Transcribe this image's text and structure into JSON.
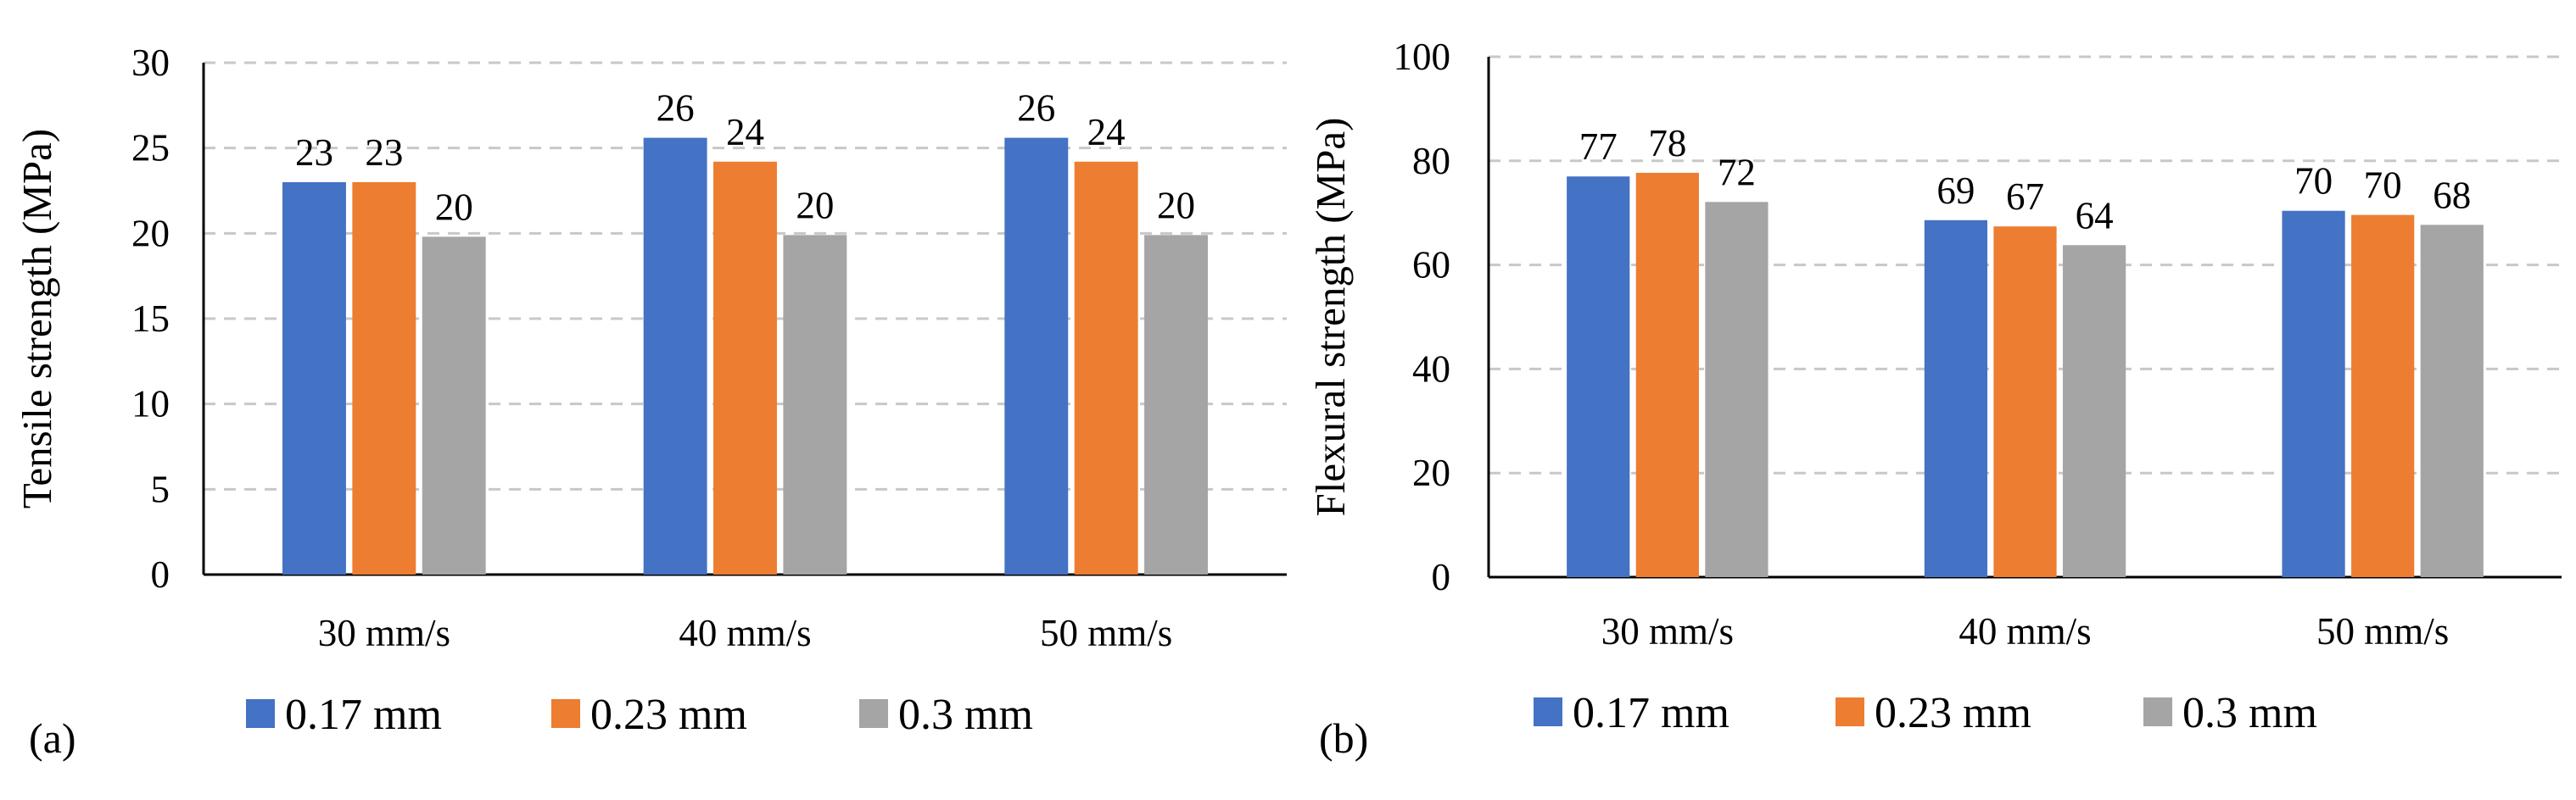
{
  "chart_data": [
    {
      "type": "bar",
      "panel_label": "(a)",
      "title": "",
      "xlabel": "",
      "ylabel": "Tensile strength (MPa)",
      "ylim": [
        0,
        30
      ],
      "yticks": [
        0,
        5,
        10,
        15,
        20,
        25,
        30
      ],
      "grid": true,
      "legend_position": "bottom",
      "categories": [
        "30 mm/s",
        "40 mm/s",
        "50 mm/s"
      ],
      "series": [
        {
          "name": "0.17 mm",
          "color": "#4472C4",
          "values": [
            23,
            25.6,
            25.6
          ],
          "labels": [
            "23",
            "26",
            "26"
          ]
        },
        {
          "name": "0.23 mm",
          "color": "#ED7D31",
          "values": [
            23,
            24.2,
            24.2
          ],
          "labels": [
            "23",
            "24",
            "24"
          ]
        },
        {
          "name": "0.3 mm",
          "color": "#A5A5A5",
          "values": [
            19.8,
            19.9,
            19.9
          ],
          "labels": [
            "20",
            "20",
            "20"
          ]
        }
      ]
    },
    {
      "type": "bar",
      "panel_label": "(b)",
      "title": "",
      "xlabel": "",
      "ylabel": "Flexural strength (MPa)",
      "ylim": [
        0,
        100
      ],
      "yticks": [
        0,
        20,
        40,
        60,
        80,
        100
      ],
      "grid": true,
      "legend_position": "bottom",
      "categories": [
        "30 mm/s",
        "40 mm/s",
        "50 mm/s"
      ],
      "series": [
        {
          "name": "0.17 mm",
          "color": "#4472C4",
          "values": [
            77,
            68.6,
            70.4
          ],
          "labels": [
            "77",
            "69",
            "70"
          ]
        },
        {
          "name": "0.23 mm",
          "color": "#ED7D31",
          "values": [
            77.7,
            67.4,
            69.6
          ],
          "labels": [
            "78",
            "67",
            "70"
          ]
        },
        {
          "name": "0.3 mm",
          "color": "#A5A5A5",
          "values": [
            72.1,
            63.8,
            67.7
          ],
          "labels": [
            "72",
            "64",
            "68"
          ]
        }
      ]
    }
  ]
}
